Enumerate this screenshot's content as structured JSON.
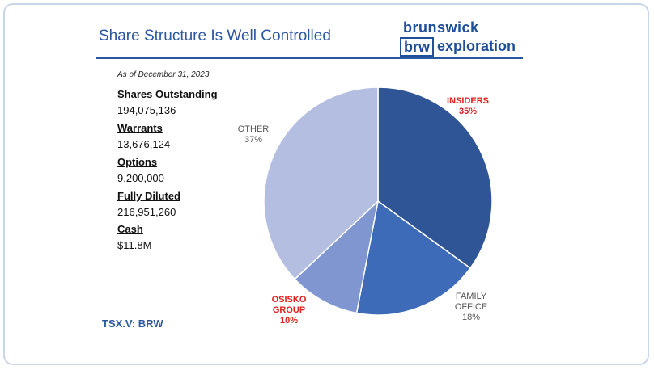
{
  "slide": {
    "title": "Share Structure Is Well Controlled",
    "as_of": "As of December 31, 2023",
    "ticker": "TSX.V: BRW"
  },
  "logo": {
    "line1": "brunswick",
    "box_text": "brw",
    "line2": "exploration",
    "color": "#1f4e9a"
  },
  "stats": [
    {
      "label": "Shares Outstanding",
      "value": "194,075,136"
    },
    {
      "label": "Warrants",
      "value": "13,676,124"
    },
    {
      "label": "Options",
      "value": "9,200,000"
    },
    {
      "label": "Fully Diluted",
      "value": "216,951,260"
    },
    {
      "label": "Cash",
      "value": "$11.8M"
    }
  ],
  "chart_data": {
    "type": "pie",
    "title": "",
    "start_angle_deg": 0,
    "direction": "clockwise",
    "slices": [
      {
        "label": "INSIDERS",
        "value": 35,
        "value_text": "35%",
        "color": "#2f5597",
        "label_color": "#e02020",
        "bold": true
      },
      {
        "label": "FAMILY OFFICE",
        "label_lines": [
          "FAMILY",
          "OFFICE"
        ],
        "value": 18,
        "value_text": "18%",
        "color": "#3e6bb8",
        "label_color": "#555555",
        "bold": false
      },
      {
        "label": "OSISKO GROUP",
        "label_lines": [
          "OSISKO",
          "GROUP"
        ],
        "value": 10,
        "value_text": "10%",
        "color": "#7f96d0",
        "label_color": "#e02020",
        "bold": true
      },
      {
        "label": "OTHER",
        "value": 37,
        "value_text": "37%",
        "color": "#b3bee0",
        "label_color": "#555555",
        "bold": false
      }
    ]
  }
}
